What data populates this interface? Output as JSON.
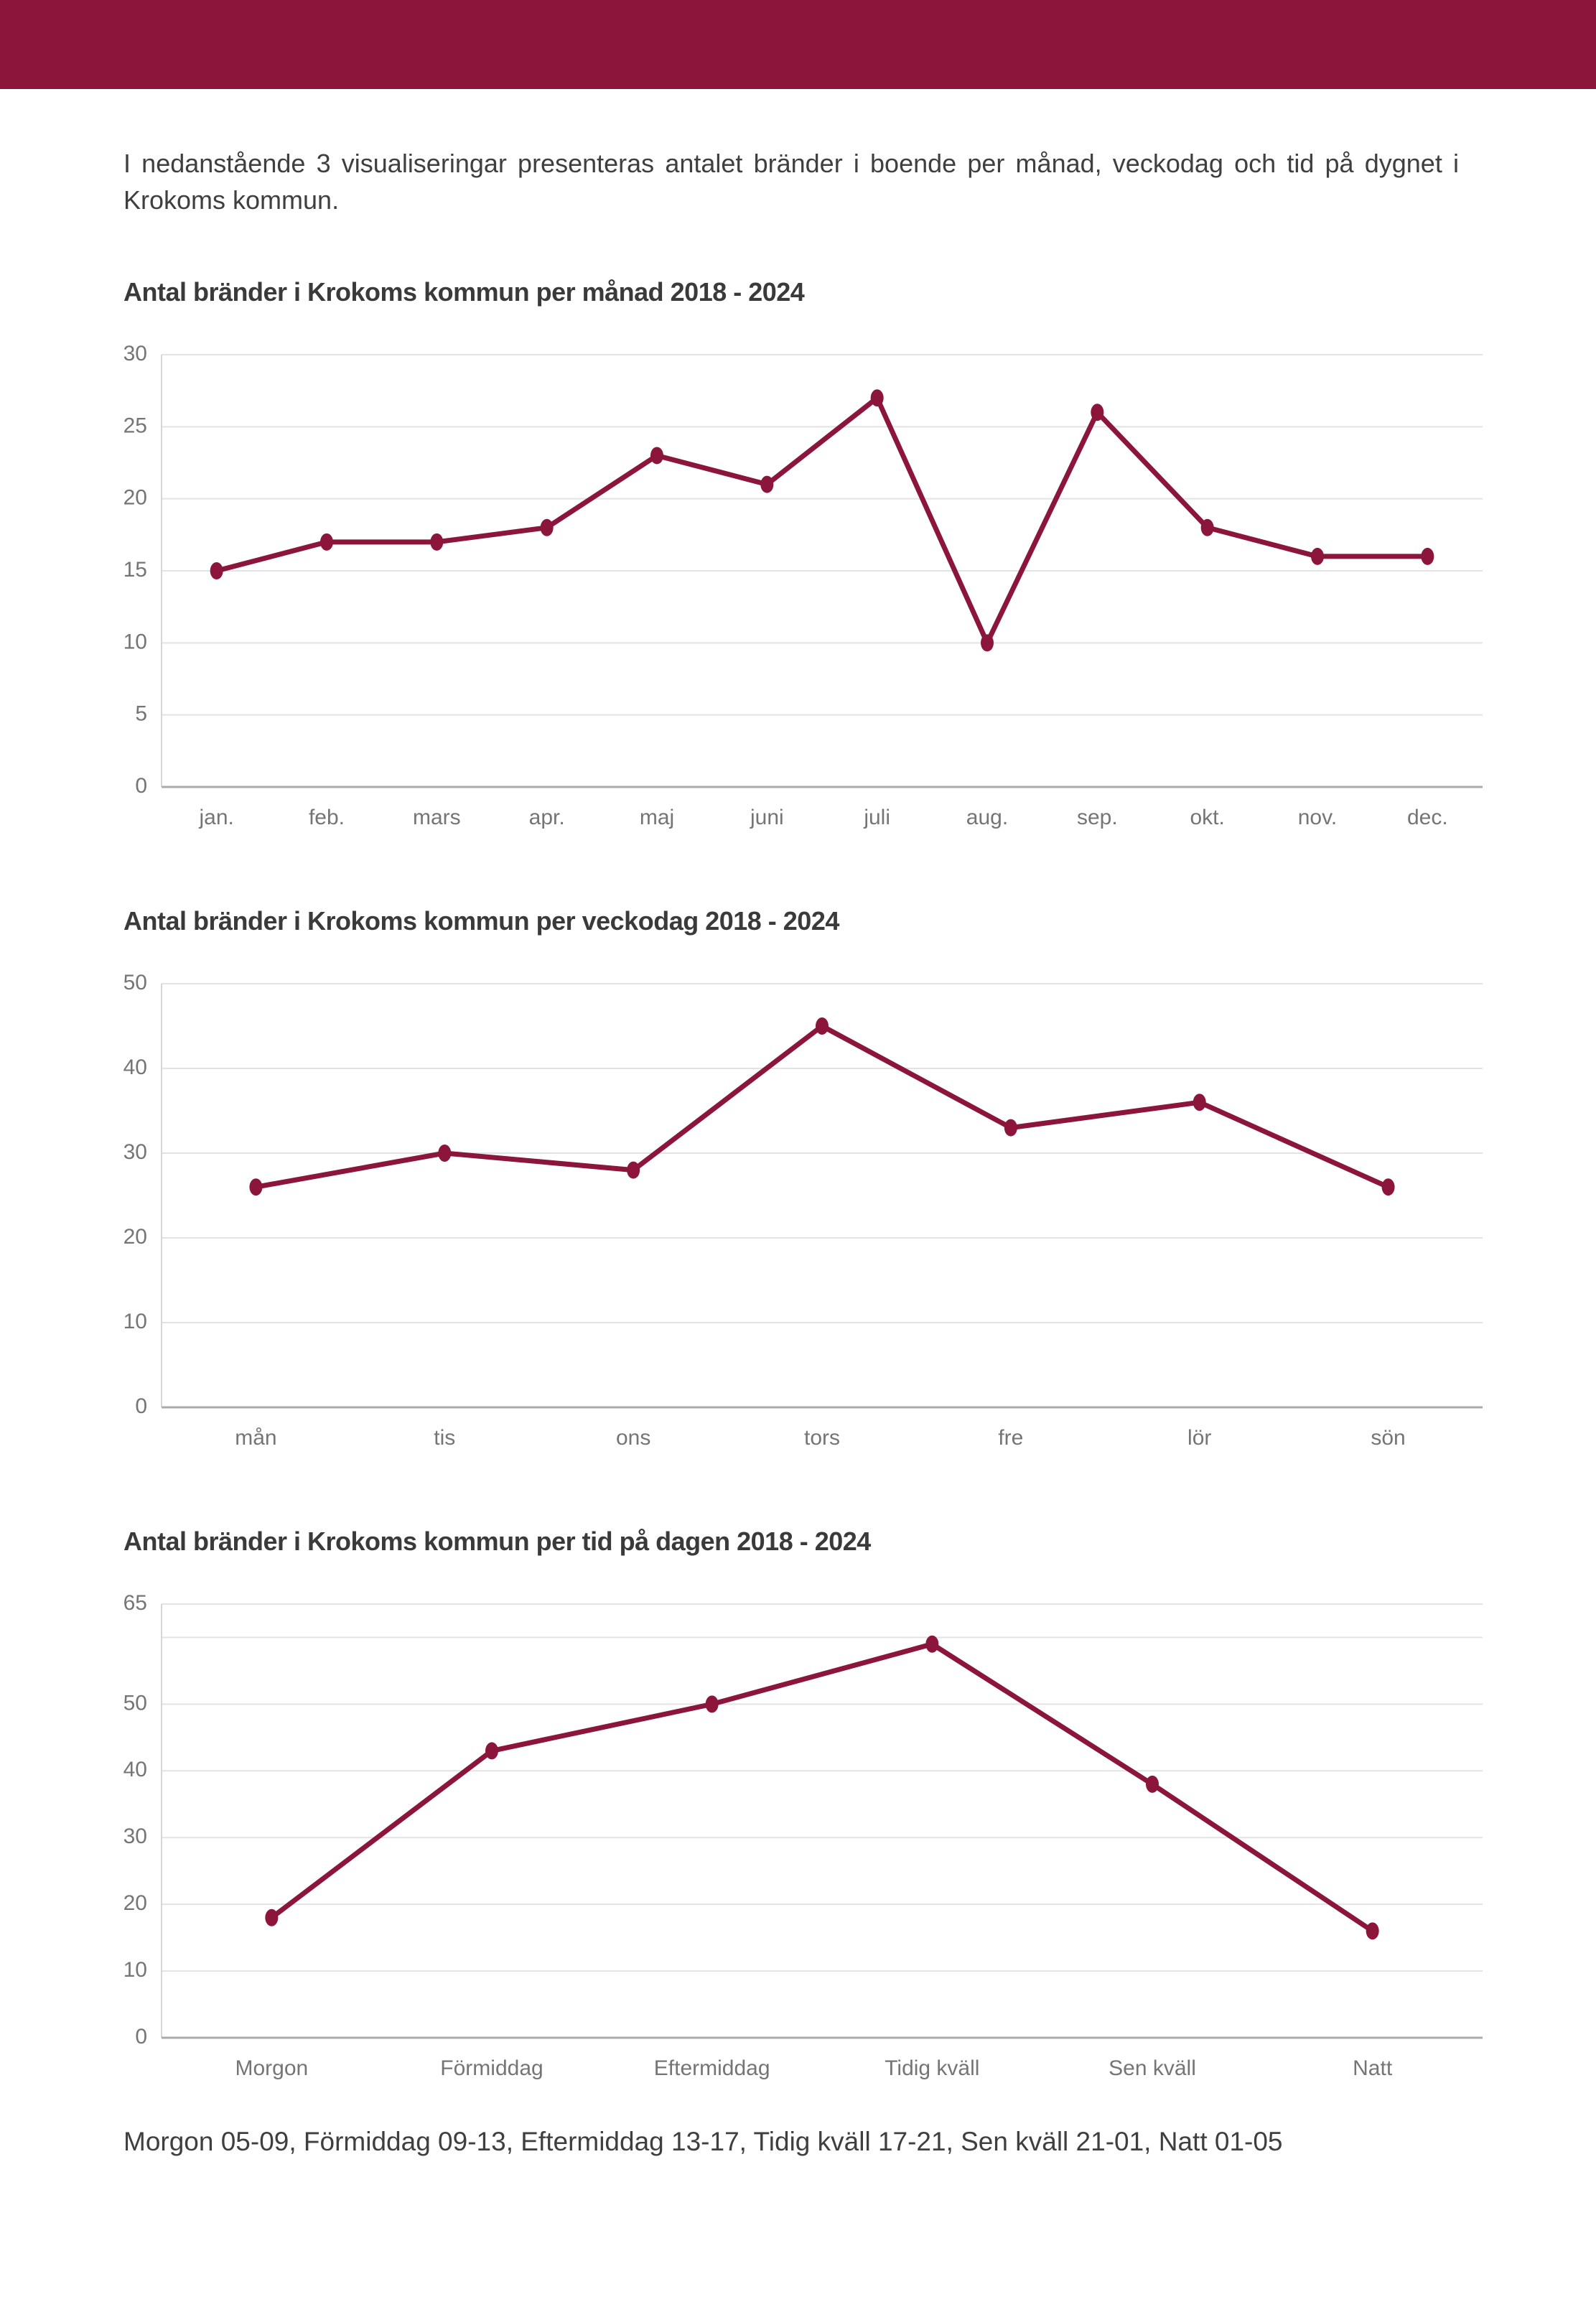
{
  "page": {
    "intro": "I nedanstående 3 visualiseringar presenteras antalet bränder i boende per månad, veckodag och tid på dygnet i Krokoms kommun.",
    "footer_note": "Morgon 05-09, Förmiddag 09-13, Eftermiddag 13-17, Tidig kväll 17-21, Sen kväll 21-01, Natt 01-05",
    "accent_color": "#8C153B",
    "grid_color": "#e3e3e3",
    "axis_color": "#ababab",
    "tick_label_color": "#757575"
  },
  "chart_data": [
    {
      "type": "line",
      "title": "Antal bränder i Krokoms kommun per månad 2018 - 2024",
      "categories": [
        "jan.",
        "feb.",
        "mars",
        "apr.",
        "maj",
        "juni",
        "juli",
        "aug.",
        "sep.",
        "okt.",
        "nov.",
        "dec."
      ],
      "values": [
        15,
        17,
        17,
        18,
        23,
        21,
        27,
        10,
        26,
        18,
        16,
        16
      ],
      "xlabel": "",
      "ylabel": "",
      "ylim": [
        0,
        30
      ],
      "yticks": [
        {
          "v": 0,
          "label": "0"
        },
        {
          "v": 5,
          "label": "5"
        },
        {
          "v": 10,
          "label": "10"
        },
        {
          "v": 15,
          "label": "15"
        },
        {
          "v": 20,
          "label": "20"
        },
        {
          "v": 25,
          "label": "25"
        },
        {
          "v": 30,
          "label": "30"
        }
      ],
      "grid": true,
      "legend": "none",
      "line_color": "#8C153B"
    },
    {
      "type": "line",
      "title": "Antal bränder i Krokoms kommun per veckodag 2018 - 2024",
      "categories": [
        "mån",
        "tis",
        "ons",
        "tors",
        "fre",
        "lör",
        "sön"
      ],
      "values": [
        26,
        30,
        28,
        45,
        33,
        36,
        26
      ],
      "xlabel": "",
      "ylabel": "",
      "ylim": [
        0,
        50
      ],
      "yticks": [
        {
          "v": 0,
          "label": "0"
        },
        {
          "v": 10,
          "label": "10"
        },
        {
          "v": 20,
          "label": "20"
        },
        {
          "v": 30,
          "label": "30"
        },
        {
          "v": 40,
          "label": "40"
        },
        {
          "v": 50,
          "label": "50"
        }
      ],
      "grid": true,
      "legend": "none",
      "line_color": "#8C153B"
    },
    {
      "type": "line",
      "title": "Antal bränder i Krokoms kommun per tid på dagen 2018 - 2024",
      "categories": [
        "Morgon",
        "Förmiddag",
        "Eftermiddag",
        "Tidig kväll",
        "Sen kväll",
        "Natt"
      ],
      "values": [
        18,
        43,
        50,
        59,
        38,
        16
      ],
      "xlabel": "",
      "ylabel": "",
      "ylim": [
        0,
        65
      ],
      "yticks": [
        {
          "v": 0,
          "label": "0"
        },
        {
          "v": 10,
          "label": "10"
        },
        {
          "v": 20,
          "label": "20"
        },
        {
          "v": 30,
          "label": "30"
        },
        {
          "v": 40,
          "label": "40"
        },
        {
          "v": 50,
          "label": "50"
        },
        {
          "v": 60,
          "label": ""
        },
        {
          "v": 65,
          "label": "65"
        }
      ],
      "grid": true,
      "legend": "none",
      "line_color": "#8C153B"
    }
  ]
}
